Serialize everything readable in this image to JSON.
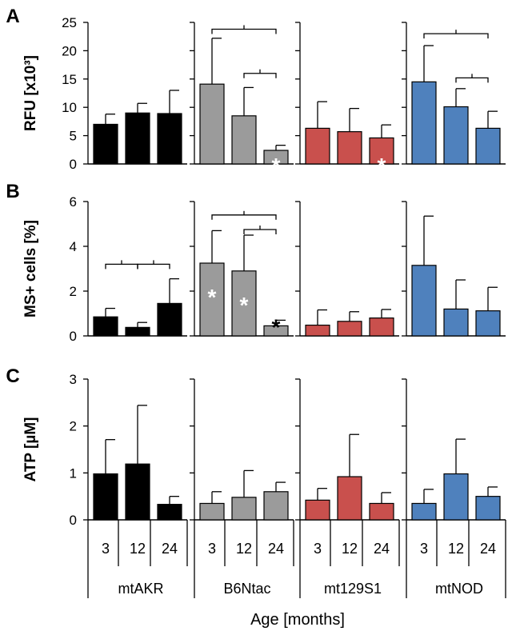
{
  "chart_data": {
    "type": "bar",
    "xlabel": "Age [months]",
    "strains": [
      "mtAKR",
      "B6Ntac",
      "mt129S1",
      "mtNOD"
    ],
    "ages": [
      "3",
      "12",
      "24"
    ],
    "colors": {
      "mtAKR": "#000000",
      "B6Ntac": "#9b9b9b",
      "mt129S1": "#c9504d",
      "mtNOD": "#4f81bd"
    },
    "panels": [
      {
        "letter": "A",
        "ylabel": "RFU [x10³]",
        "ylim": [
          0,
          25
        ],
        "ticks": [
          "0",
          "5",
          "10",
          "15",
          "20",
          "25"
        ],
        "tick_values": [
          0,
          5,
          10,
          15,
          20,
          25
        ],
        "series": [
          {
            "name": "mtAKR",
            "values": [
              7.0,
              9.0,
              8.9
            ],
            "errors": [
              1.8,
              1.7,
              4.1
            ]
          },
          {
            "name": "B6Ntac",
            "values": [
              14.1,
              8.5,
              2.4
            ],
            "errors": [
              8.1,
              5.0,
              0.9
            ]
          },
          {
            "name": "mt129S1",
            "values": [
              6.3,
              5.7,
              4.6
            ],
            "errors": [
              4.7,
              4.1,
              2.3
            ]
          },
          {
            "name": "mtNOD",
            "values": [
              14.5,
              10.1,
              6.3
            ],
            "errors": [
              6.4,
              3.2,
              3.0
            ]
          }
        ],
        "stars": [
          {
            "series": 1,
            "bar": 2,
            "label": "*",
            "color": "#ffffff",
            "where": "inside"
          },
          {
            "series": 2,
            "bar": 2,
            "label": "*",
            "color": "#ffffff",
            "where": "inside"
          }
        ],
        "brackets": [
          {
            "series": 1,
            "from": 0,
            "to": 2,
            "level": 23.8
          },
          {
            "series": 1,
            "from": 1,
            "to": 2,
            "level": 16.0
          },
          {
            "series": 3,
            "from": 0,
            "to": 2,
            "level": 23.0
          },
          {
            "series": 3,
            "from": 1,
            "to": 2,
            "level": 15.2
          }
        ]
      },
      {
        "letter": "B",
        "ylabel": "MS+ cells [%]",
        "ylim": [
          0,
          6
        ],
        "ticks": [
          "0",
          "2",
          "4",
          "6"
        ],
        "tick_values": [
          0,
          2,
          4,
          6
        ],
        "series": [
          {
            "name": "mtAKR",
            "values": [
              0.85,
              0.38,
              1.45
            ],
            "errors": [
              0.38,
              0.22,
              1.1
            ]
          },
          {
            "name": "B6Ntac",
            "values": [
              3.25,
              2.9,
              0.45
            ],
            "errors": [
              1.45,
              1.6,
              0.25
            ]
          },
          {
            "name": "mt129S1",
            "values": [
              0.48,
              0.65,
              0.8
            ],
            "errors": [
              0.68,
              0.43,
              0.38
            ]
          },
          {
            "name": "mtNOD",
            "values": [
              3.15,
              1.2,
              1.12
            ],
            "errors": [
              2.2,
              1.3,
              1.05
            ]
          }
        ],
        "stars": [
          {
            "series": 1,
            "bar": 0,
            "label": "*",
            "color": "#ffffff",
            "where": "inside"
          },
          {
            "series": 1,
            "bar": 1,
            "label": "*",
            "color": "#ffffff",
            "where": "inside"
          },
          {
            "series": 1,
            "bar": 2,
            "label": "*",
            "color": "#000000",
            "where": "above"
          }
        ],
        "brackets": [
          {
            "series": 0,
            "from": 0,
            "to": 1,
            "level": 3.2
          },
          {
            "series": 0,
            "from": 1,
            "to": 2,
            "level": 3.2
          },
          {
            "series": 1,
            "from": 0,
            "to": 2,
            "level": 5.4
          },
          {
            "series": 1,
            "from": 1,
            "to": 2,
            "level": 4.75
          }
        ]
      },
      {
        "letter": "C",
        "ylabel": "ATP [µM]",
        "ylim": [
          0,
          3
        ],
        "ticks": [
          "0",
          "1",
          "2",
          "3"
        ],
        "tick_values": [
          0,
          1,
          2,
          3
        ],
        "series": [
          {
            "name": "mtAKR",
            "values": [
              0.98,
              1.19,
              0.33
            ],
            "errors": [
              0.73,
              1.25,
              0.17
            ]
          },
          {
            "name": "B6Ntac",
            "values": [
              0.35,
              0.48,
              0.6
            ],
            "errors": [
              0.25,
              0.57,
              0.2
            ]
          },
          {
            "name": "mt129S1",
            "values": [
              0.42,
              0.92,
              0.35
            ],
            "errors": [
              0.25,
              0.9,
              0.23
            ]
          },
          {
            "name": "mtNOD",
            "values": [
              0.35,
              0.98,
              0.5
            ],
            "errors": [
              0.3,
              0.74,
              0.2
            ]
          }
        ],
        "stars": [],
        "brackets": []
      }
    ]
  }
}
